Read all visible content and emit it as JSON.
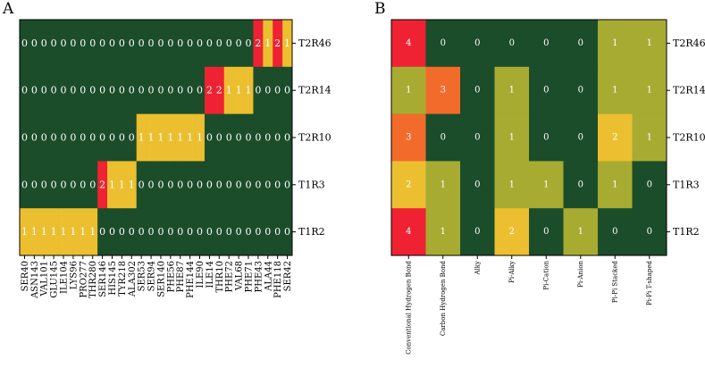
{
  "chart_data": [
    {
      "type": "heatmap",
      "panel_label": "A",
      "rows": [
        "T2R46",
        "T2R14",
        "T2R10",
        "T1R3",
        "T1R2"
      ],
      "columns": [
        "SER40",
        "ASN143",
        "VAL101",
        "GLU145",
        "ILE104",
        "LYS96",
        "PRO277",
        "THR280",
        "SER146",
        "HIS145",
        "TYR218",
        "ALA302",
        "SER53",
        "SER94",
        "SER140",
        "PHE56",
        "PHE87",
        "PHE144",
        "ILE90",
        "ILE14",
        "THR10",
        "PHE72",
        "VAL68",
        "PHE71",
        "PHE43",
        "ALA44",
        "PHE118",
        "SER42"
      ],
      "values": [
        [
          0,
          0,
          0,
          0,
          0,
          0,
          0,
          0,
          0,
          0,
          0,
          0,
          0,
          0,
          0,
          0,
          0,
          0,
          0,
          0,
          0,
          0,
          0,
          0,
          2,
          1,
          2,
          1
        ],
        [
          0,
          0,
          0,
          0,
          0,
          0,
          0,
          0,
          0,
          0,
          0,
          0,
          0,
          0,
          0,
          0,
          0,
          0,
          0,
          2,
          2,
          1,
          1,
          1,
          0,
          0,
          0,
          0
        ],
        [
          0,
          0,
          0,
          0,
          0,
          0,
          0,
          0,
          0,
          0,
          0,
          0,
          1,
          1,
          1,
          1,
          1,
          1,
          1,
          0,
          0,
          0,
          0,
          0,
          0,
          0,
          0,
          0
        ],
        [
          0,
          0,
          0,
          0,
          0,
          0,
          0,
          0,
          2,
          1,
          1,
          1,
          0,
          0,
          0,
          0,
          0,
          0,
          0,
          0,
          0,
          0,
          0,
          0,
          0,
          0,
          0,
          0
        ],
        [
          1,
          1,
          1,
          1,
          1,
          1,
          1,
          1,
          0,
          0,
          0,
          0,
          0,
          0,
          0,
          0,
          0,
          0,
          0,
          0,
          0,
          0,
          0,
          0,
          0,
          0,
          0,
          0
        ]
      ],
      "color_scale": {
        "0": "#1b4d2a",
        "1": "#ebbf2f",
        "2": "#ee2232"
      }
    },
    {
      "type": "heatmap",
      "panel_label": "B",
      "rows": [
        "T2R46",
        "T2R14",
        "T2R10",
        "T1R3",
        "T1R2"
      ],
      "columns": [
        "Conventional Hydrogen Bond",
        "Carbon Hydrogen Bond",
        "Alky",
        "Pi-Alky",
        "Pi-Cation",
        "Pi-Anion",
        "Pi-Pi Stacked",
        "Pi-Pi T-shaped"
      ],
      "values": [
        [
          4,
          0,
          0,
          0,
          0,
          0,
          1,
          1
        ],
        [
          1,
          3,
          0,
          1,
          0,
          0,
          1,
          1
        ],
        [
          3,
          0,
          0,
          1,
          0,
          0,
          2,
          1
        ],
        [
          2,
          1,
          0,
          1,
          1,
          0,
          1,
          0
        ],
        [
          4,
          1,
          0,
          2,
          0,
          1,
          0,
          0
        ]
      ],
      "color_scale": {
        "0": "#1b4d2a",
        "1": "#a8ab32",
        "2": "#ebbf2f",
        "3": "#f26b2b",
        "4": "#ee2232"
      }
    }
  ]
}
